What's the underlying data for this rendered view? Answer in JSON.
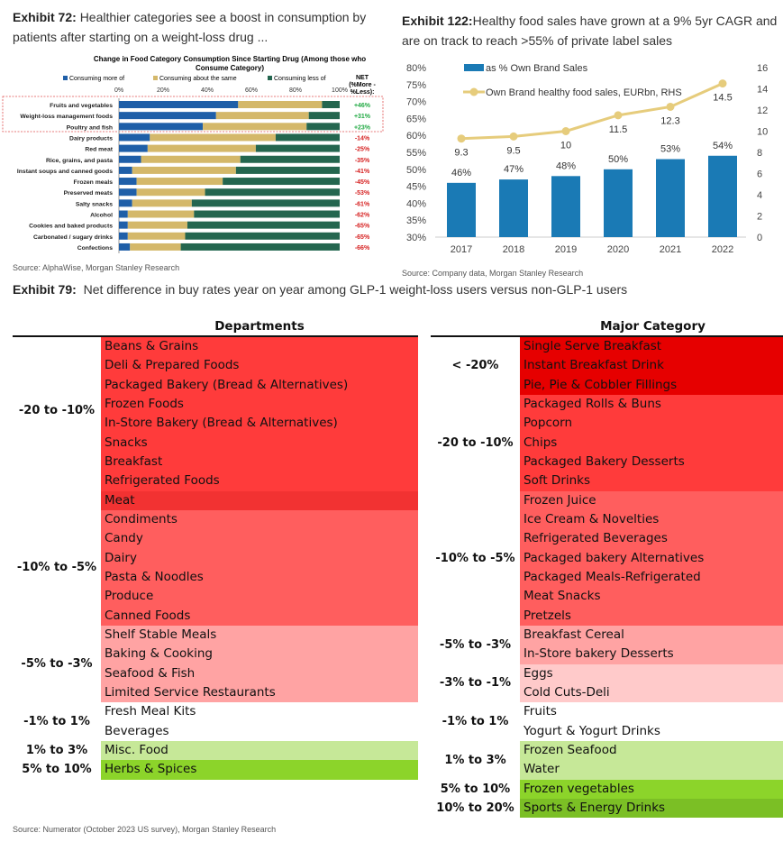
{
  "exhibit72": {
    "label": "Exhibit 72:",
    "title_line1": "Healthier categories see a boost in consumption by",
    "title_line2": "patients after starting on a weight-loss drug ...",
    "source": "Source: AlphaWise, Morgan Stanley Research"
  },
  "exhibit122": {
    "label": "Exhibit 122:",
    "title_line1": "Healthy food sales have grown at a 9% 5yr CAGR and",
    "title_line2": "are on track to reach >55% of private label sales",
    "source": "Source: Company data, Morgan Stanley Research"
  },
  "exhibit79": {
    "label": "Exhibit 79:",
    "title": "Net difference in buy rates year on year among GLP-1 weight-loss users versus non-GLP-1 users",
    "source": "Source: Numerator (October 2023 US survey), Morgan Stanley Research"
  },
  "chart_data": [
    {
      "type": "bar",
      "orientation": "horizontal",
      "stacked": true,
      "title": "Change in Food Category Consumption Since Starting Drug (Among those who Consume Category)",
      "net_header": "NET (%More - %Less):",
      "xticks": [
        "0%",
        "20%",
        "40%",
        "60%",
        "80%",
        "100%"
      ],
      "xlim": [
        0,
        100
      ],
      "categories": [
        "Fruits and vegetables",
        "Weight-loss management foods",
        "Poultry and fish",
        "Dairy products",
        "Red meat",
        "Rice, grains, and pasta",
        "Instant soups and canned goods",
        "Frozen meals",
        "Preserved meats",
        "Salty snacks",
        "Alcohol",
        "Cookies and baked products",
        "Carbonated / sugary drinks",
        "Confections"
      ],
      "series": [
        {
          "name": "Consuming more of",
          "color": "#1f5fa8",
          "values": [
            54,
            44,
            38,
            14,
            13,
            10,
            6,
            8,
            8,
            6,
            4,
            4,
            4,
            5
          ]
        },
        {
          "name": "Consuming about the same",
          "color": "#d4b86a",
          "values": [
            38,
            42,
            47,
            57,
            49,
            45,
            47,
            39,
            31,
            27,
            30,
            27,
            26,
            23
          ]
        },
        {
          "name": "Consuming less of",
          "color": "#24664f",
          "values": [
            8,
            14,
            15,
            29,
            38,
            45,
            47,
            53,
            61,
            67,
            66,
            69,
            70,
            72
          ]
        }
      ],
      "net": [
        "+46%",
        "+31%",
        "+23%",
        "-14%",
        "-25%",
        "-35%",
        "-41%",
        "-45%",
        "-53%",
        "-61%",
        "-62%",
        "-65%",
        "-65%",
        "-66%"
      ],
      "highlighted": [
        "Fruits and vegetables",
        "Weight-loss management foods",
        "Poultry and fish"
      ]
    },
    {
      "type": "bar+line",
      "categories": [
        "2017",
        "2018",
        "2019",
        "2020",
        "2021",
        "2022"
      ],
      "series": [
        {
          "name": "as % Own Brand Sales",
          "type": "bar",
          "axis": "left",
          "color": "#1a7ab5",
          "values": [
            46,
            47,
            48,
            50,
            53,
            54
          ],
          "labels": [
            "46%",
            "47%",
            "48%",
            "50%",
            "53%",
            "54%"
          ]
        },
        {
          "name": "Own Brand healthy food sales, EURbn, RHS",
          "type": "line",
          "axis": "right",
          "color": "#e6cc7c",
          "values": [
            9.3,
            9.5,
            10,
            11.5,
            12.3,
            14.5
          ],
          "labels": [
            "9.3",
            "9.5",
            "10",
            "11.5",
            "12.3",
            "14.5"
          ]
        }
      ],
      "ylim_left": [
        30,
        80
      ],
      "yticks_left": [
        "30%",
        "35%",
        "40%",
        "45%",
        "50%",
        "55%",
        "60%",
        "65%",
        "70%",
        "75%",
        "80%"
      ],
      "ylim_right": [
        0,
        16
      ],
      "yticks_right": [
        "0",
        "2",
        "4",
        "6",
        "8",
        "10",
        "12",
        "14",
        "16"
      ],
      "legend": "top-left"
    }
  ],
  "departments": {
    "header": "Departments",
    "groups": [
      {
        "range": "",
        "color": "#ff3b3b",
        "items": [
          "Beans & Grains",
          "Deli & Prepared Foods",
          "Packaged Bakery (Bread & Alternatives)"
        ]
      },
      {
        "range": "-20 to -10%",
        "color": "#ff3b3b",
        "items": [
          "Frozen Foods",
          "In-Store Bakery (Bread & Alternatives)",
          "Snacks",
          "Breakfast",
          "Refrigerated Foods"
        ]
      },
      {
        "range": "",
        "color": "#f23232",
        "items": [
          "Meat"
        ]
      },
      {
        "range": "-10% to -5%",
        "color": "#ff5e5e",
        "items": [
          "Condiments",
          "Candy",
          "Dairy",
          "Pasta & Noodles",
          "Produce",
          "Canned Foods"
        ]
      },
      {
        "range": "-5% to -3%",
        "color": "#ffa3a3",
        "items": [
          "Shelf Stable Meals",
          "Baking & Cooking",
          "Seafood & Fish",
          "Limited Service Restaurants"
        ]
      },
      {
        "range": "-1% to 1%",
        "color": "#ffffff",
        "items": [
          "Fresh Meal Kits",
          "Beverages"
        ]
      },
      {
        "range": "1% to 3%",
        "color": "#c6e898",
        "items": [
          "Misc. Food"
        ]
      },
      {
        "range": "5% to 10%",
        "color": "#8cd42a",
        "items": [
          "Herbs & Spices"
        ]
      }
    ]
  },
  "major_category": {
    "header": "Major Category",
    "groups": [
      {
        "range": "< -20%",
        "color": "#e60000",
        "items": [
          "Single Serve Breakfast",
          "Instant Breakfast Drink",
          "Pie, Pie & Cobbler Fillings"
        ]
      },
      {
        "range": "-20 to -10%",
        "color": "#ff3b3b",
        "items": [
          "Packaged Rolls & Buns",
          "Popcorn",
          "Chips",
          "Packaged Bakery Desserts",
          "Soft Drinks"
        ]
      },
      {
        "range": "-10% to -5%",
        "color": "#ff5e5e",
        "items": [
          "Frozen Juice",
          "Ice Cream & Novelties",
          "Refrigerated Beverages",
          "Packaged bakery Alternatives",
          "Packaged Meals-Refrigerated",
          "Meat Snacks",
          "Pretzels"
        ]
      },
      {
        "range": "-5% to -3%",
        "color": "#ffa3a3",
        "items": [
          "Breakfast Cereal",
          "In-Store bakery Desserts"
        ]
      },
      {
        "range": "-3% to -1%",
        "color": "#ffcaca",
        "items": [
          "Eggs",
          "Cold Cuts-Deli"
        ]
      },
      {
        "range": "-1% to 1%",
        "color": "#ffffff",
        "items": [
          "Fruits",
          "Yogurt & Yogurt Drinks"
        ]
      },
      {
        "range": "1% to 3%",
        "color": "#c6e898",
        "items": [
          "Frozen Seafood",
          "Water"
        ]
      },
      {
        "range": "5% to 10%",
        "color": "#8cd42a",
        "items": [
          "Frozen vegetables"
        ]
      },
      {
        "range": "10% to 20%",
        "color": "#7bbf25",
        "items": [
          "Sports & Energy Drinks"
        ]
      }
    ]
  }
}
